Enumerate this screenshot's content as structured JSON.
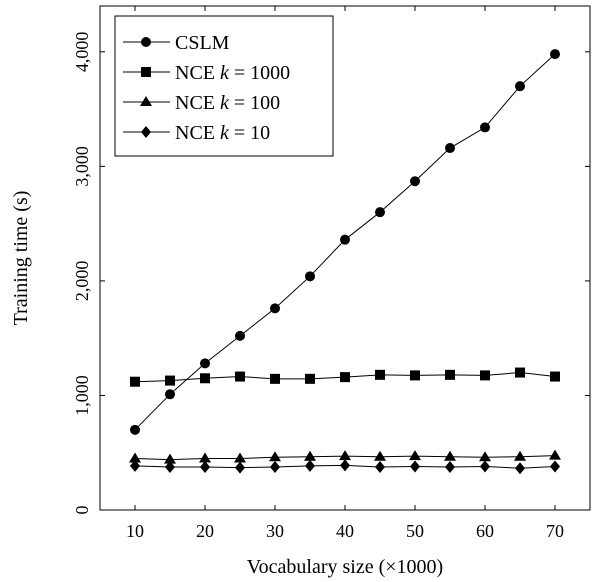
{
  "chart_data": {
    "type": "line",
    "title": "",
    "xlabel": "Vocabulary size (×1000)",
    "ylabel": "Training time (s)",
    "xlim": [
      5,
      75
    ],
    "ylim": [
      0,
      4400
    ],
    "xticks": [
      10,
      20,
      30,
      40,
      50,
      60,
      70
    ],
    "yticks": [
      0,
      1000,
      2000,
      3000,
      4000
    ],
    "xtick_labels": [
      "10",
      "20",
      "30",
      "40",
      "50",
      "60",
      "70"
    ],
    "ytick_labels": [
      "0",
      "1,000",
      "2,000",
      "3,000",
      "4,000"
    ],
    "grid": false,
    "legend_position": "top-left",
    "x": [
      10,
      15,
      20,
      25,
      30,
      35,
      40,
      45,
      50,
      55,
      60,
      65,
      70
    ],
    "series": [
      {
        "name": "CSLM",
        "name_parts": [
          "CSLM",
          "",
          ""
        ],
        "marker": "circle",
        "values": [
          700,
          1010,
          1280,
          1520,
          1760,
          2040,
          2360,
          2600,
          2870,
          3160,
          3340,
          3700,
          3980
        ]
      },
      {
        "name": "NCE k = 1000",
        "name_parts": [
          "NCE ",
          "k",
          " = 1000"
        ],
        "marker": "square",
        "values": [
          1120,
          1130,
          1150,
          1165,
          1145,
          1145,
          1160,
          1180,
          1175,
          1180,
          1175,
          1200,
          1165
        ]
      },
      {
        "name": "NCE k = 100",
        "name_parts": [
          "NCE ",
          "k",
          " = 100"
        ],
        "marker": "triangle",
        "values": [
          450,
          440,
          450,
          450,
          460,
          465,
          470,
          465,
          470,
          465,
          460,
          465,
          475
        ]
      },
      {
        "name": "NCE k = 10",
        "name_parts": [
          "NCE ",
          "k",
          " = 10"
        ],
        "marker": "diamond",
        "values": [
          385,
          375,
          375,
          370,
          375,
          385,
          390,
          375,
          380,
          375,
          380,
          365,
          380
        ]
      }
    ]
  }
}
